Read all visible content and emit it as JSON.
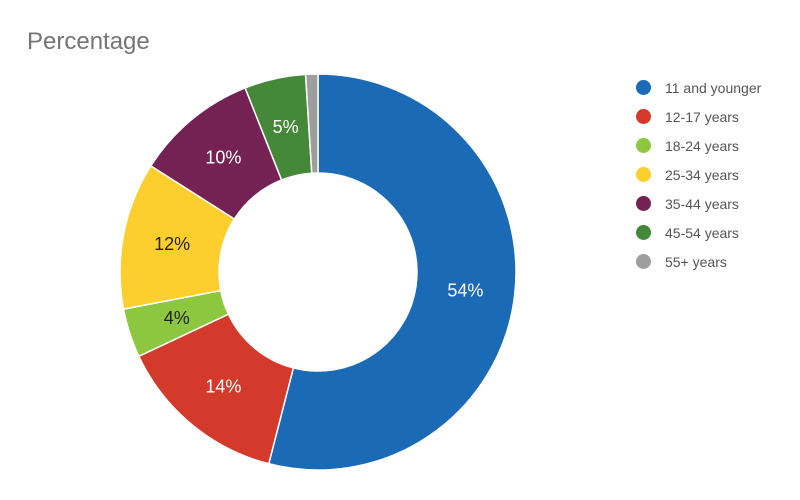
{
  "chart_data": {
    "type": "pie",
    "title": "Percentage",
    "categories": [
      "11 and younger",
      "12-17 years",
      "18-24 years",
      "25-34 years",
      "35-44 years",
      "45-54 years",
      "55+ years"
    ],
    "values": [
      54,
      14,
      4,
      12,
      10,
      5,
      1
    ],
    "data_labels": [
      "54%",
      "14%",
      "4%",
      "12%",
      "10%",
      "5%",
      ""
    ],
    "colors": [
      "#1a6ab5",
      "#d33a2c",
      "#8dc63f",
      "#fccf2f",
      "#742254",
      "#46883a",
      "#9e9e9e"
    ],
    "label_colors": [
      "#ffffff",
      "#ffffff",
      "#222222",
      "#222222",
      "#ffffff",
      "#ffffff",
      "#ffffff"
    ],
    "donut": true,
    "legend_position": "right"
  }
}
